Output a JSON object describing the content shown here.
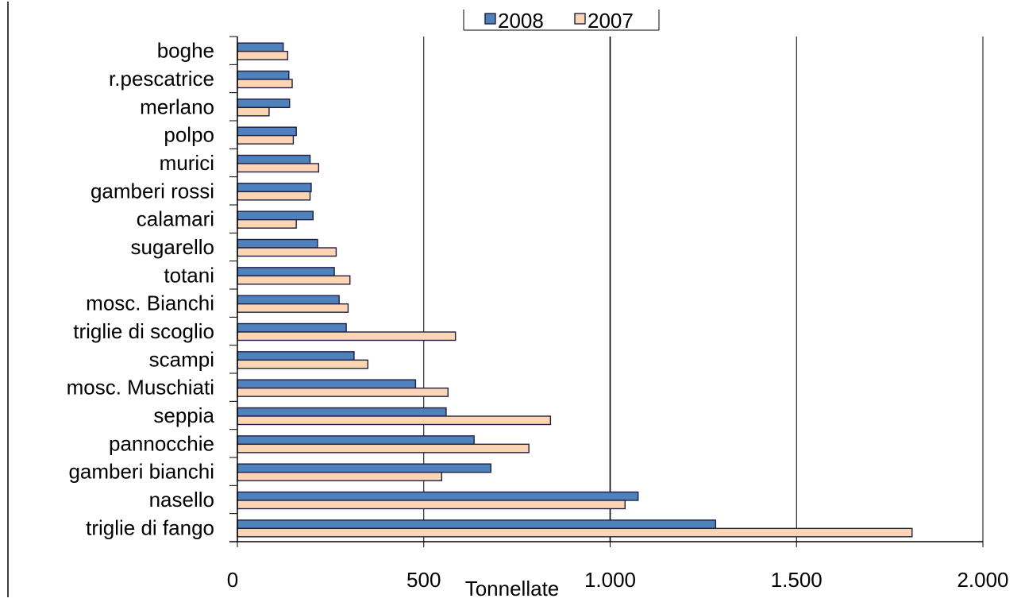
{
  "chart_data": {
    "type": "bar",
    "orientation": "horizontal",
    "title": "",
    "xlabel": "Tonnellate",
    "ylabel": "",
    "xlim": [
      0,
      2000
    ],
    "x_ticks": [
      0,
      500,
      1000,
      1500,
      2000
    ],
    "x_tick_labels": [
      "0",
      "500",
      "1.000",
      "1.500",
      "2.000"
    ],
    "grid": "vertical",
    "legend_position": "top-center",
    "categories": [
      "boghe",
      "r.pescatrice",
      "merlano",
      "polpo",
      "murici",
      "gamberi rossi",
      "calamari",
      "sugarello",
      "totani",
      "mosc. Bianchi",
      "triglie di scoglio",
      "scampi",
      "mosc. Muschiati",
      "seppia",
      "pannocchie",
      "gamberi bianchi",
      "nasello",
      "triglie di fango"
    ],
    "series": [
      {
        "name": "2008",
        "color": "#4f81bd",
        "values": [
          123,
          138,
          140,
          158,
          195,
          198,
          203,
          215,
          260,
          273,
          292,
          313,
          478,
          560,
          635,
          680,
          1075,
          1283
        ]
      },
      {
        "name": "2007",
        "color": "#fcd5b5",
        "values": [
          135,
          147,
          85,
          150,
          218,
          195,
          158,
          265,
          302,
          297,
          585,
          350,
          565,
          840,
          782,
          548,
          1040,
          1810
        ]
      }
    ]
  }
}
